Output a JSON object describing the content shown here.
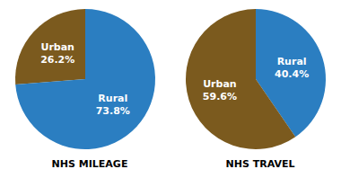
{
  "chart_data": [
    {
      "type": "pie",
      "title": "NHS MILEAGE",
      "categories": [
        "Urban",
        "Rural"
      ],
      "values": [
        26.2,
        73.8
      ],
      "value_labels": [
        "26.2%",
        "73.8%"
      ],
      "colors": [
        "#7B5A1E",
        "#2B7EC1"
      ],
      "data_labels": true
    },
    {
      "type": "pie",
      "title": "NHS TRAVEL",
      "categories": [
        "Rural",
        "Urban"
      ],
      "values": [
        40.4,
        59.6
      ],
      "value_labels": [
        "40.4%",
        "59.6%"
      ],
      "colors": [
        "#2B7EC1",
        "#7B5A1E"
      ],
      "data_labels": true
    }
  ]
}
